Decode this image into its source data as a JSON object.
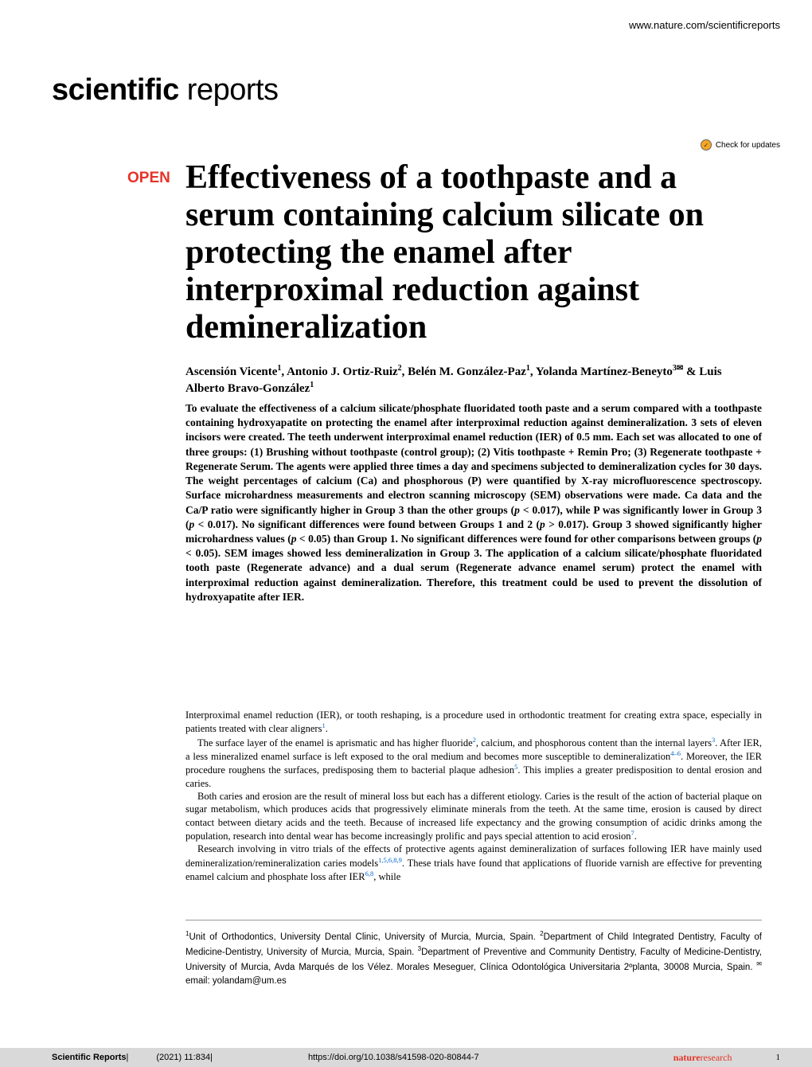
{
  "header_url": "www.nature.com/scientificreports",
  "journal_logo": {
    "bold": "scientific",
    "rest": " reports"
  },
  "check_for_updates": "Check for updates",
  "open_badge": "OPEN",
  "title": "Effectiveness of a toothpaste and a serum containing calcium silicate on protecting the enamel after interproximal reduction against demineralization",
  "authors_html": "Ascensión Vicente<span class=\"sup\">1</span>, Antonio J. Ortiz-Ruiz<span class=\"sup\">2</span>, Belén M. González-Paz<span class=\"sup\">1</span>, Yolanda Martínez-Beneyto<span class=\"sup\">3</span><span class=\"envelope\">✉</span> & Luis Alberto Bravo-González<span class=\"sup\">1</span>",
  "abstract": "To evaluate the effectiveness of a calcium silicate/phosphate fluoridated tooth paste and a serum compared with a toothpaste containing hydroxyapatite on protecting the enamel after interproximal reduction against demineralization. 3 sets of eleven incisors were created. The teeth underwent interproximal enamel reduction (IER) of 0.5 mm. Each set was allocated to one of three groups: (1) Brushing without toothpaste (control group); (2) Vitis toothpaste + Remin Pro; (3) Regenerate toothpaste + Regenerate Serum. The agents were applied three times a day and specimens subjected to demineralization cycles for 30 days. The weight percentages of calcium (Ca) and phosphorous (P) were quantified by X-ray microfluorescence spectroscopy. Surface microhardness measurements and electron scanning microscopy (SEM) observations were made. Ca data and the Ca/P ratio were significantly higher in Group 3 than the other groups (p < 0.017), while P was significantly lower in Group 3 (p < 0.017). No significant differences were found between Groups 1 and 2 (p > 0.017). Group 3 showed significantly higher microhardness values (p < 0.05) than Group 1. No significant differences were found for other comparisons between groups (p < 0.05). SEM images showed less demineralization in Group 3. The application of a calcium silicate/phosphate fluoridated tooth paste (Regenerate advance) and a dual serum (Regenerate advance enamel serum) protect the enamel with interproximal reduction against demineralization. Therefore, this treatment could be used to prevent the dissolution of hydroxyapatite after IER.",
  "body": {
    "p1": "Interproximal enamel reduction (IER), or tooth reshaping, is a procedure used in orthodontic treatment for creating extra space, especially in patients treated with clear aligners",
    "p2_a": "The surface layer of the enamel is aprismatic and has higher fluoride",
    "p2_b": ", calcium, and phosphorous content than the internal layers",
    "p2_c": ". After IER, a less mineralized enamel surface is left exposed to the oral medium and becomes more susceptible to demineralization",
    "p2_d": ". Moreover, the IER procedure roughens the surfaces, predisposing them to bacterial plaque adhesion",
    "p2_e": ". This implies a greater predisposition to dental erosion and caries.",
    "p3": "Both caries and erosion are the result of mineral loss but each has a different etiology. Caries is the result of the action of bacterial plaque on sugar metabolism, which produces acids that progressively eliminate minerals from the teeth. At the same time, erosion is caused by direct contact between dietary acids and the teeth. Because of increased life expectancy and the growing consumption of acidic drinks among the population, research into dental wear has become increasingly prolific and pays special attention to acid erosion",
    "p4_a": "Research involving in vitro trials of the effects of protective agents against demineralization of surfaces following IER have mainly used demineralization/remineralization caries models",
    "p4_b": ". These trials have found that applications of fluoride varnish are effective for preventing enamel calcium and phosphate loss after IER",
    "p4_c": ", while"
  },
  "refs": {
    "r1": "1",
    "r2": "2",
    "r3": "3",
    "r46": "4–6",
    "r5": "5",
    "r7": "7",
    "r15689": "1,5,6,8,9",
    "r68": "6,8"
  },
  "affiliations_html": "<span class=\"sup\">1</span>Unit of Orthodontics, University Dental Clinic, University of Murcia, Murcia, Spain. <span class=\"sup\">2</span>Department of Child Integrated Dentistry, Faculty of Medicine-Dentistry, University of Murcia, Murcia, Spain. <span class=\"sup\">3</span>Department of Preventive and Community Dentistry, Faculty of Medicine-Dentistry, University of Murcia, Avda Marqués de los Vélez. Morales Meseguer, Clínica Odontológica Universitaria 2ºplanta, 30008 Murcia, Spain. <span class=\"sup\">✉</span>email: yolandam@um.es",
  "footer": {
    "journal": "Scientific Reports",
    "citation": "(2021) 11:834",
    "doi": "https://doi.org/10.1038/s41598-020-80844-7",
    "brand_bold": "nature",
    "brand_rest": "research",
    "page": "1"
  },
  "colors": {
    "accent_red": "#e63329",
    "link_blue": "#0066cc",
    "footer_bg": "#d9d9d9",
    "text": "#000000"
  }
}
